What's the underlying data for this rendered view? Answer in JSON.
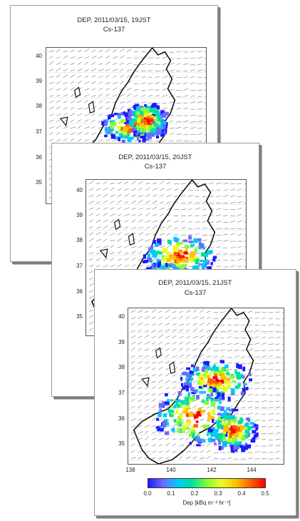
{
  "panels": [
    {
      "title": "DEP, 2011/03/15,  19JST",
      "subtitle": "Cs-137"
    },
    {
      "title": "DEP, 2011/03/15,  20JST",
      "subtitle": "Cs-137"
    },
    {
      "title": "DEP, 2011/03/15,  21JST",
      "subtitle": "Cs-137"
    }
  ],
  "yticks": [
    "40",
    "39",
    "38",
    "37",
    "36",
    "35"
  ],
  "xticks": [
    "138",
    "140",
    "142",
    "144"
  ],
  "colorbar": {
    "ticks": [
      "0.0",
      "0.1",
      "0.2",
      "0.3",
      "0.4",
      "0.5"
    ],
    "label": "Dep [kBq m⁻² hr⁻¹]",
    "colors": [
      "#1a1aff",
      "#6a6aff",
      "#00c8ff",
      "#00e0a0",
      "#80ff30",
      "#e8ff20",
      "#ffc000",
      "#ff6000",
      "#ff0000"
    ]
  }
}
